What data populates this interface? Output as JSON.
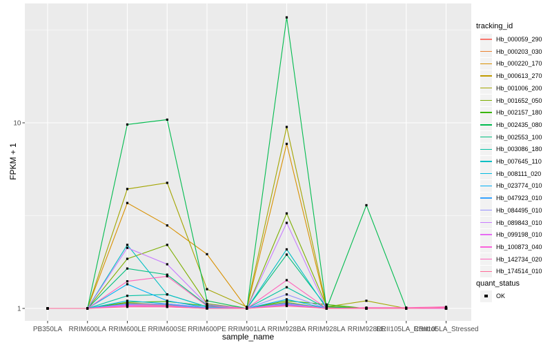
{
  "figure": {
    "background": "#FFFFFF",
    "panel_background": "#EBEBEB",
    "grid_color": "#FFFFFF",
    "tick_label_color": "#4D4D4D",
    "tick_mark_color": "#333333",
    "marker_color": "#000000",
    "legend_key_background": "#F2F2F2"
  },
  "axes": {
    "x_title": "sample_name",
    "y_title": "FPKM + 1",
    "y_tick_labels": [
      "1",
      "10"
    ]
  },
  "legend": {
    "tracking_title": "tracking_id",
    "quant_title": "quant_status",
    "quant_items": [
      "OK"
    ]
  },
  "chart_data": {
    "type": "line",
    "title": "",
    "xlabel": "sample_name",
    "ylabel": "FPKM + 1",
    "y_scale": "log10",
    "y_ticks": [
      1,
      10
    ],
    "y_minor_ticks": [
      3.162,
      31.62
    ],
    "ylim": [
      0.86,
      44
    ],
    "grid": true,
    "legend_position": "right",
    "point_marker": "black square (quant_status = OK at every point)",
    "categories": [
      "PB350LA",
      "RRIM600LA",
      "RRIM600LE",
      "RRIM600SE",
      "RRIM600PE",
      "RRIM901LA",
      "RRIM928BA",
      "RRIM928LA",
      "RRIM928LE",
      "RRII105LA_Control",
      "RRII105LA_Stressed"
    ],
    "series": [
      {
        "name": "Hb_000059_290",
        "color": "#F8766D",
        "values": [
          1,
          1,
          1.05,
          1.04,
          1.01,
          1,
          1.06,
          1.01,
          1,
          1,
          1
        ]
      },
      {
        "name": "Hb_000203_030",
        "color": "#EA8331",
        "values": [
          1,
          1,
          1.04,
          1.03,
          1,
          1,
          1.04,
          1,
          1,
          1,
          1
        ]
      },
      {
        "name": "Hb_000220_170",
        "color": "#D89000",
        "values": [
          1,
          1,
          3.7,
          2.8,
          1.96,
          1,
          7.7,
          1,
          1,
          1,
          1
        ]
      },
      {
        "name": "Hb_000613_270",
        "color": "#C09B00",
        "values": [
          1,
          1,
          1.07,
          1.05,
          1.01,
          1,
          1.08,
          1,
          1,
          1,
          1
        ]
      },
      {
        "name": "Hb_001006_200",
        "color": "#A3A500",
        "values": [
          1,
          1,
          4.4,
          4.75,
          1.27,
          1.02,
          9.5,
          1.02,
          1.1,
          1,
          1
        ]
      },
      {
        "name": "Hb_001652_050",
        "color": "#7CAE00",
        "values": [
          1,
          1,
          1.85,
          2.2,
          1.06,
          1,
          3.25,
          1.03,
          1,
          1,
          1
        ]
      },
      {
        "name": "Hb_002157_180",
        "color": "#39B600",
        "values": [
          1,
          1,
          1.08,
          1.09,
          1.03,
          1,
          1.1,
          1.05,
          1,
          1,
          1
        ]
      },
      {
        "name": "Hb_002435_080",
        "color": "#00BB4E",
        "values": [
          1,
          1,
          9.8,
          10.4,
          1.1,
          1,
          37,
          1,
          3.6,
          1,
          1
        ]
      },
      {
        "name": "Hb_002553_100",
        "color": "#00BF7D",
        "values": [
          1,
          1,
          1.64,
          1.52,
          1.04,
          1,
          1.95,
          1.02,
          1,
          1,
          1
        ]
      },
      {
        "name": "Hb_003086_180",
        "color": "#00C1A3",
        "values": [
          1,
          1,
          1.17,
          1.19,
          1.02,
          1,
          1.3,
          1,
          1,
          1,
          1
        ]
      },
      {
        "name": "Hb_007645_110",
        "color": "#00BFC4",
        "values": [
          1,
          1,
          2.2,
          1.19,
          1.02,
          1,
          2.08,
          1,
          1,
          1,
          1
        ]
      },
      {
        "name": "Hb_008111_020",
        "color": "#00BAE0",
        "values": [
          1,
          1,
          1.1,
          1.06,
          1.01,
          1,
          1.07,
          1,
          1,
          1,
          1
        ]
      },
      {
        "name": "Hb_023774_010",
        "color": "#00B0F6",
        "values": [
          1,
          1,
          1.35,
          1.1,
          1.01,
          1,
          1.12,
          1,
          1,
          1,
          1
        ]
      },
      {
        "name": "Hb_047923_010",
        "color": "#35A2FF",
        "values": [
          1,
          1,
          1.06,
          1.05,
          1,
          1,
          1.05,
          1,
          1,
          1,
          1
        ]
      },
      {
        "name": "Hb_084495_010",
        "color": "#9590FF",
        "values": [
          1,
          1,
          1.05,
          1.06,
          1.01,
          1,
          1.19,
          1,
          1,
          1,
          1
        ]
      },
      {
        "name": "Hb_089843_010",
        "color": "#C77CFF",
        "values": [
          1,
          1,
          2.12,
          1.73,
          1.05,
          1,
          2.89,
          1,
          1,
          1,
          1
        ]
      },
      {
        "name": "Hb_099198_010",
        "color": "#E76BF3",
        "values": [
          1,
          1,
          1.04,
          1.03,
          1,
          1,
          1.06,
          1,
          1,
          1,
          1
        ]
      },
      {
        "name": "Hb_100873_040",
        "color": "#FA62DB",
        "values": [
          1,
          1,
          1.03,
          1.02,
          1,
          1,
          1.04,
          1,
          1,
          1,
          1
        ]
      },
      {
        "name": "Hb_142734_020",
        "color": "#FF62BC",
        "values": [
          1,
          1,
          1.4,
          1.49,
          1.03,
          1,
          1.42,
          1,
          1.01,
          1.01,
          1.02
        ]
      },
      {
        "name": "Hb_174514_010",
        "color": "#FF6A98",
        "values": [
          1,
          1,
          1.02,
          1.02,
          1,
          1,
          1.03,
          1,
          1,
          1,
          1.01
        ]
      }
    ]
  }
}
